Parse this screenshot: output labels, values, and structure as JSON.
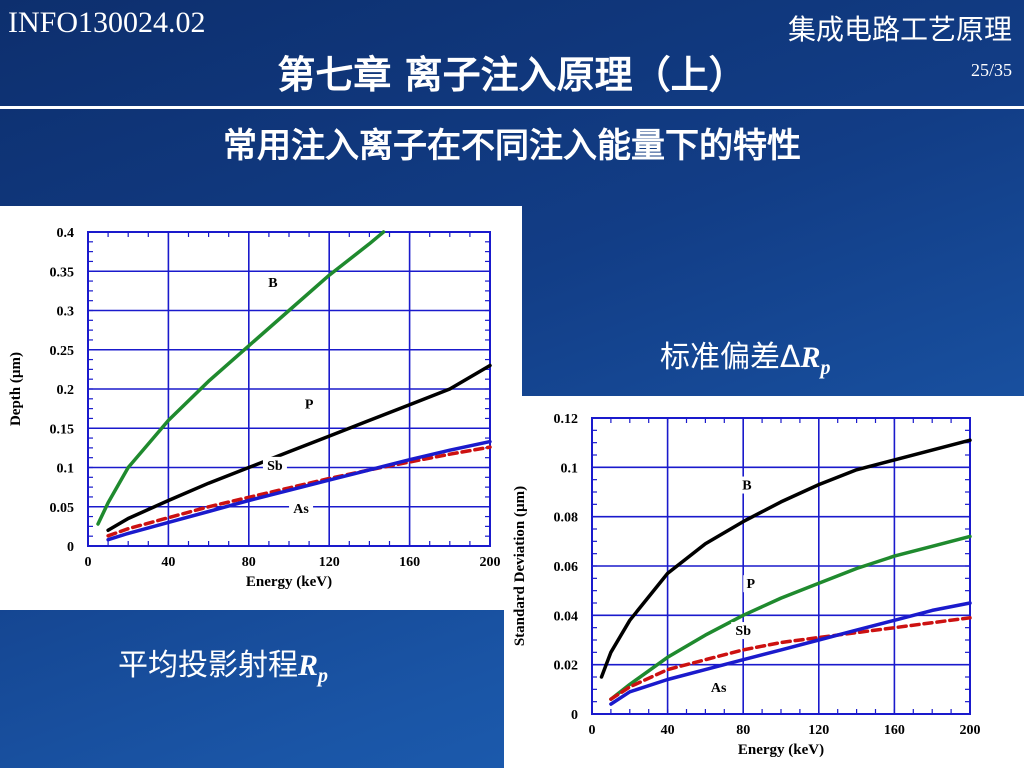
{
  "header": {
    "course_code": "INFO130024.02",
    "course_name": "集成电路工艺原理",
    "chapter": "第七章 离子注入原理（上）",
    "page": "25/35"
  },
  "slide_title": "常用注入离子在不同注入能量下的特性",
  "captions": {
    "std_dev_prefix": "标准偏差Δ",
    "std_dev_var": "R",
    "std_dev_sub": "p",
    "proj_range_prefix": "平均投影射程",
    "proj_range_var": "R",
    "proj_range_sub": "p"
  },
  "chart_data": [
    {
      "type": "line",
      "xlabel": "Energy (keV)",
      "ylabel": "Depth (µm)",
      "xlim": [
        0,
        200
      ],
      "ylim": [
        0,
        0.4
      ],
      "xticks": [
        0,
        40,
        80,
        120,
        160,
        200
      ],
      "yticks": [
        0,
        0.05,
        0.1,
        0.15,
        0.2,
        0.25,
        0.3,
        0.35,
        0.4
      ],
      "ytick_labels": [
        "0",
        "0.05",
        "0.1",
        "0.15",
        "0.2",
        "0.25",
        "0.3",
        "0.35",
        "0.4"
      ],
      "grid": true,
      "series": [
        {
          "name": "B",
          "color": "#1f8a2e",
          "dash": false,
          "x": [
            5,
            10,
            20,
            40,
            60,
            80,
            100,
            120,
            140,
            147
          ],
          "y": [
            0.028,
            0.055,
            0.1,
            0.16,
            0.21,
            0.255,
            0.3,
            0.345,
            0.385,
            0.4
          ]
        },
        {
          "name": "P",
          "color": "#000000",
          "dash": false,
          "x": [
            10,
            20,
            40,
            60,
            80,
            100,
            120,
            140,
            160,
            180,
            200
          ],
          "y": [
            0.02,
            0.035,
            0.058,
            0.08,
            0.1,
            0.12,
            0.14,
            0.16,
            0.18,
            0.2,
            0.23
          ]
        },
        {
          "name": "Sb",
          "color": "#cc1111",
          "dash": true,
          "x": [
            10,
            20,
            40,
            60,
            80,
            100,
            120,
            140,
            160,
            180,
            200
          ],
          "y": [
            0.013,
            0.022,
            0.036,
            0.05,
            0.062,
            0.074,
            0.086,
            0.097,
            0.107,
            0.117,
            0.126
          ]
        },
        {
          "name": "As",
          "color": "#1a1acc",
          "dash": false,
          "x": [
            10,
            20,
            40,
            60,
            80,
            100,
            120,
            140,
            160,
            180,
            200
          ],
          "y": [
            0.008,
            0.016,
            0.03,
            0.044,
            0.058,
            0.071,
            0.084,
            0.097,
            0.11,
            0.122,
            0.133
          ]
        }
      ],
      "labels": [
        {
          "text": "B",
          "x": 92,
          "y": 0.33
        },
        {
          "text": "P",
          "x": 110,
          "y": 0.175
        },
        {
          "text": "Sb",
          "x": 93,
          "y": 0.097
        },
        {
          "text": "As",
          "x": 106,
          "y": 0.042
        }
      ]
    },
    {
      "type": "line",
      "xlabel": "Energy (keV)",
      "ylabel": "Standard Deviation (µm)",
      "xlim": [
        0,
        200
      ],
      "ylim": [
        0,
        0.12
      ],
      "xticks": [
        0,
        40,
        80,
        120,
        160,
        200
      ],
      "yticks": [
        0,
        0.02,
        0.04,
        0.06,
        0.08,
        0.1,
        0.12
      ],
      "ytick_labels": [
        "0",
        "0.02",
        "0.04",
        "0.06",
        "0.08",
        "0.1",
        "0.12"
      ],
      "grid": true,
      "series": [
        {
          "name": "B",
          "color": "#000000",
          "dash": false,
          "x": [
            5,
            10,
            20,
            40,
            60,
            80,
            100,
            120,
            140,
            160,
            180,
            200
          ],
          "y": [
            0.015,
            0.025,
            0.038,
            0.057,
            0.069,
            0.078,
            0.086,
            0.093,
            0.099,
            0.103,
            0.107,
            0.111
          ]
        },
        {
          "name": "P",
          "color": "#1f8a2e",
          "dash": false,
          "x": [
            10,
            20,
            40,
            60,
            80,
            100,
            120,
            140,
            160,
            180,
            200
          ],
          "y": [
            0.006,
            0.012,
            0.023,
            0.032,
            0.04,
            0.047,
            0.053,
            0.059,
            0.064,
            0.068,
            0.072
          ]
        },
        {
          "name": "Sb",
          "color": "#cc1111",
          "dash": true,
          "x": [
            10,
            20,
            40,
            60,
            80,
            100,
            120,
            140,
            160,
            180,
            200
          ],
          "y": [
            0.006,
            0.011,
            0.018,
            0.022,
            0.026,
            0.029,
            0.031,
            0.033,
            0.035,
            0.037,
            0.039
          ]
        },
        {
          "name": "As",
          "color": "#1a1acc",
          "dash": false,
          "x": [
            10,
            20,
            40,
            60,
            80,
            100,
            120,
            140,
            160,
            180,
            200
          ],
          "y": [
            0.004,
            0.009,
            0.014,
            0.018,
            0.022,
            0.026,
            0.03,
            0.034,
            0.038,
            0.042,
            0.045
          ]
        }
      ],
      "labels": [
        {
          "text": "B",
          "x": 82,
          "y": 0.091
        },
        {
          "text": "P",
          "x": 84,
          "y": 0.051
        },
        {
          "text": "Sb",
          "x": 80,
          "y": 0.032
        },
        {
          "text": "As",
          "x": 67,
          "y": 0.009
        }
      ]
    }
  ]
}
